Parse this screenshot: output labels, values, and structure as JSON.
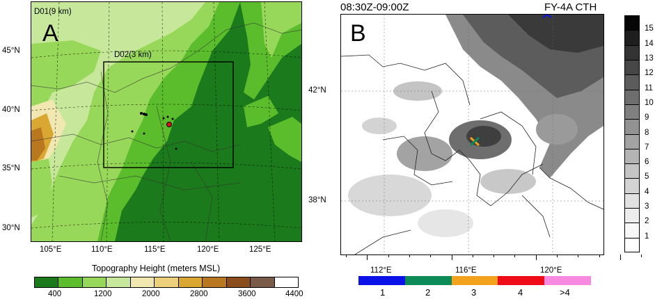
{
  "panel_a": {
    "letter": "A",
    "d01_label": "D01(9 km)",
    "d02_label": "D02(3 km)",
    "lat_labels": [
      "45°N",
      "40°N",
      "35°N",
      "30°N"
    ],
    "lon_labels": [
      "105°E",
      "110°E",
      "115°E",
      "120°E",
      "125°E"
    ],
    "colorbar_title": "Topography Height (meters MSL)",
    "colorbar_ticks": [
      "400",
      "1200",
      "2000",
      "2800",
      "3600",
      "4400"
    ],
    "colorbar_colors": [
      "#1b7a1b",
      "#5bbd2c",
      "#97d75a",
      "#c7e89a",
      "#f1e7b0",
      "#ecd07c",
      "#dba733",
      "#b9771f",
      "#8b4d1b",
      "#7a5a48",
      "#ffffff"
    ]
  },
  "panel_b": {
    "letter": "B",
    "time_label": "08:30Z-09:00Z",
    "product_label": "FY-4A CTH",
    "lat_labels": [
      "42°N",
      "38°N"
    ],
    "lon_labels": [
      "112°E",
      "116°E",
      "120°E"
    ],
    "cth_colorbar_ticks": [
      "15",
      "14",
      "13",
      "12",
      "11",
      "10",
      "9",
      "8",
      "7",
      "6",
      "5",
      "4",
      "3",
      "2",
      "1"
    ],
    "cth_colorbar_colors": [
      "#060606",
      "#1e1e1e",
      "#333333",
      "#474747",
      "#5c5c5c",
      "#6e6e6e",
      "#808080",
      "#929292",
      "#a3a3a3",
      "#b4b4b4",
      "#c4c4c4",
      "#d3d3d3",
      "#e1e1e1",
      "#ededed",
      "#f8f8f8"
    ],
    "count_legend_labels": [
      "1",
      "2",
      "3",
      "4",
      ">4"
    ],
    "count_legend_colors": [
      "#0b12e8",
      "#0c8a57",
      "#f2a21c",
      "#f00c16",
      "#f78ae0"
    ]
  }
}
